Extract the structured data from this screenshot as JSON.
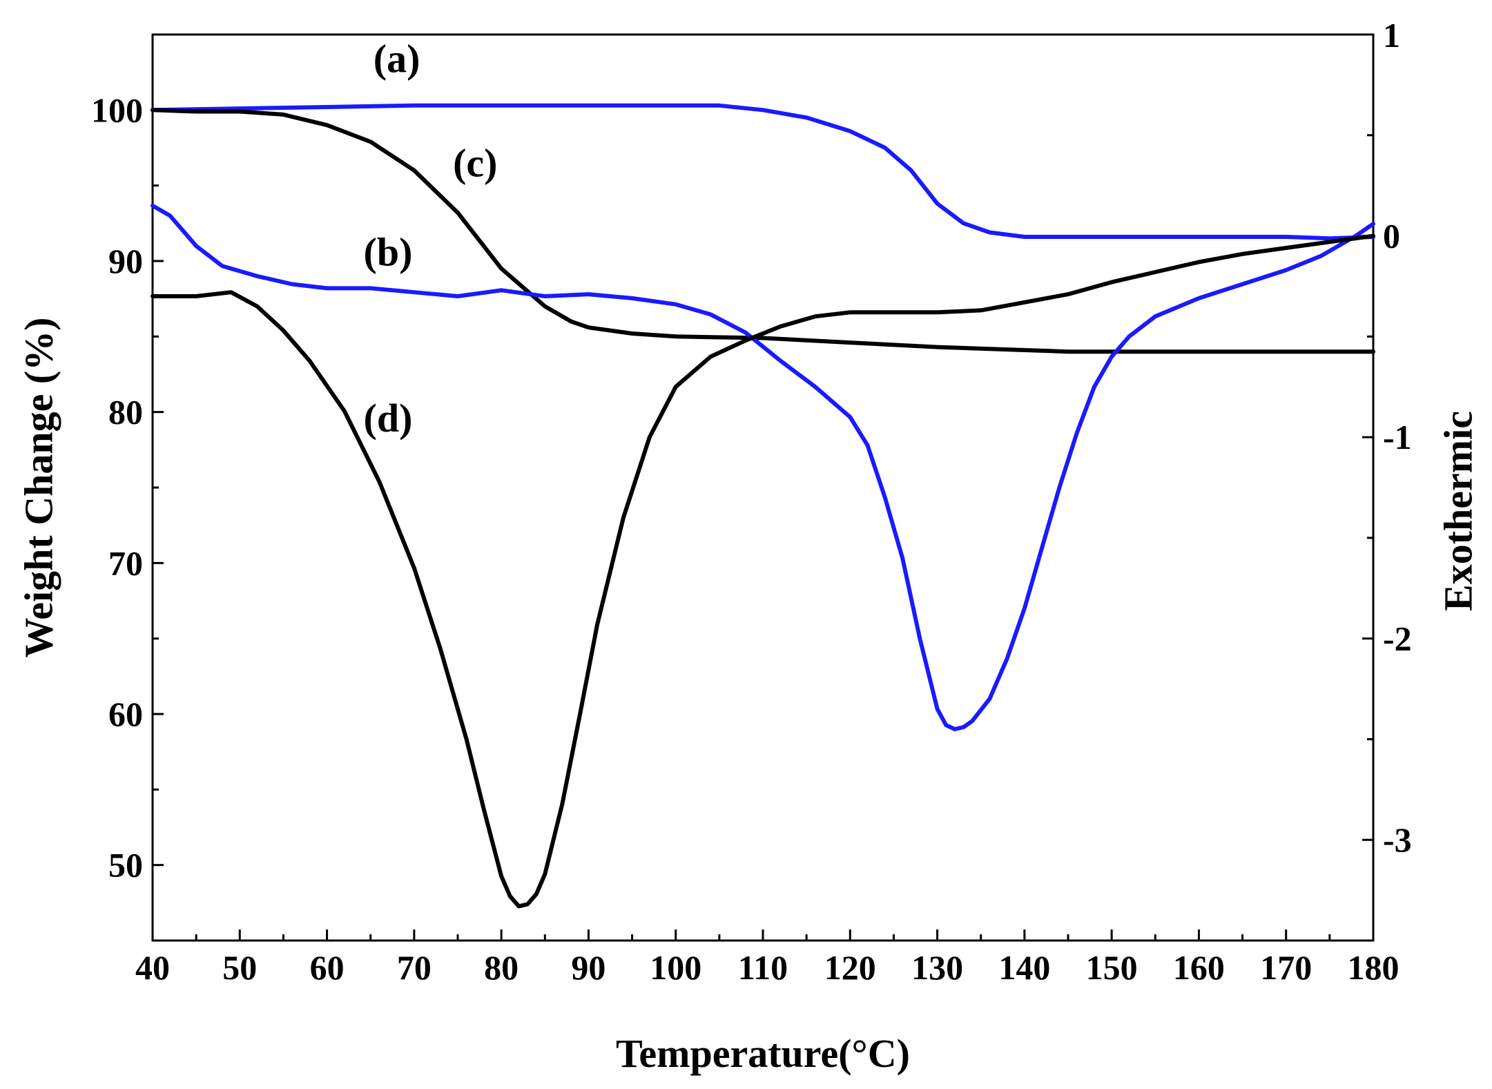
{
  "chart_data": {
    "type": "line",
    "title": "",
    "xlabel": "Temperature(°C)",
    "ylabel": "Weight Change (%)",
    "y2label": "Exothermic",
    "xlim": [
      40,
      180
    ],
    "ylim": [
      45,
      105
    ],
    "y2lim": [
      -3.5,
      1.0
    ],
    "xticks": [
      40,
      50,
      60,
      70,
      80,
      90,
      100,
      110,
      120,
      130,
      140,
      150,
      160,
      170,
      180
    ],
    "yticks": [
      50,
      60,
      70,
      80,
      90,
      100
    ],
    "y2ticks": [
      -3,
      -2,
      -1,
      0,
      1
    ],
    "grid": false,
    "series": [
      {
        "name": "(a)",
        "axis": "left",
        "color": "#1a1aff",
        "x": [
          40,
          50,
          60,
          70,
          80,
          90,
          100,
          105,
          110,
          115,
          120,
          124,
          127,
          130,
          133,
          136,
          140,
          145,
          150,
          160,
          170,
          175,
          180
        ],
        "y": [
          100.0,
          100.1,
          100.2,
          100.3,
          100.3,
          100.3,
          100.3,
          100.3,
          100.0,
          99.5,
          98.6,
          97.5,
          96.0,
          93.8,
          92.5,
          91.9,
          91.6,
          91.6,
          91.6,
          91.6,
          91.6,
          91.5,
          91.6
        ]
      },
      {
        "name": "(c)",
        "axis": "left",
        "color": "#000000",
        "x": [
          40,
          45,
          50,
          55,
          60,
          65,
          70,
          75,
          80,
          82,
          85,
          88,
          90,
          95,
          100,
          110,
          120,
          130,
          140,
          145,
          150,
          160,
          170,
          180
        ],
        "y": [
          100.0,
          99.9,
          99.9,
          99.7,
          99.0,
          97.9,
          96.0,
          93.2,
          89.5,
          88.5,
          87.0,
          86.0,
          85.6,
          85.2,
          85.0,
          84.9,
          84.6,
          84.3,
          84.1,
          84.0,
          84.0,
          84.0,
          84.0,
          84.0
        ]
      },
      {
        "name": "(b)",
        "axis": "right",
        "color": "#1a1aff",
        "x": [
          40,
          42,
          45,
          48,
          52,
          56,
          60,
          65,
          70,
          75,
          80,
          85,
          90,
          95,
          100,
          104,
          108,
          112,
          116,
          120,
          122,
          124,
          126,
          128,
          130,
          131,
          132,
          133,
          134,
          136,
          138,
          140,
          142,
          144,
          146,
          148,
          150,
          152,
          155,
          160,
          165,
          170,
          174,
          178,
          180
        ],
        "y": [
          0.15,
          0.1,
          -0.05,
          -0.15,
          -0.2,
          -0.24,
          -0.26,
          -0.26,
          -0.28,
          -0.3,
          -0.27,
          -0.3,
          -0.29,
          -0.31,
          -0.34,
          -0.39,
          -0.48,
          -0.62,
          -0.75,
          -0.9,
          -1.04,
          -1.3,
          -1.6,
          -2.0,
          -2.35,
          -2.43,
          -2.45,
          -2.44,
          -2.41,
          -2.3,
          -2.1,
          -1.85,
          -1.55,
          -1.25,
          -0.98,
          -0.75,
          -0.6,
          -0.5,
          -0.4,
          -0.31,
          -0.24,
          -0.17,
          -0.1,
          0.0,
          0.06
        ]
      },
      {
        "name": "(d)",
        "axis": "right",
        "color": "#000000",
        "x": [
          40,
          45,
          49,
          52,
          55,
          58,
          62,
          66,
          70,
          73,
          76,
          78,
          80,
          81,
          82,
          83,
          84,
          85,
          87,
          89,
          91,
          94,
          97,
          100,
          104,
          108,
          112,
          116,
          120,
          125,
          130,
          135,
          140,
          145,
          150,
          155,
          160,
          165,
          170,
          175,
          180
        ],
        "y": [
          -0.3,
          -0.3,
          -0.28,
          -0.35,
          -0.47,
          -0.62,
          -0.87,
          -1.22,
          -1.65,
          -2.05,
          -2.5,
          -2.85,
          -3.18,
          -3.28,
          -3.33,
          -3.32,
          -3.27,
          -3.17,
          -2.82,
          -2.38,
          -1.93,
          -1.4,
          -1.0,
          -0.75,
          -0.6,
          -0.52,
          -0.45,
          -0.4,
          -0.38,
          -0.38,
          -0.38,
          -0.37,
          -0.33,
          -0.29,
          -0.23,
          -0.18,
          -0.13,
          -0.09,
          -0.06,
          -0.03,
          0.0
        ]
      }
    ],
    "annotations": [
      {
        "text": "(a)",
        "x": 68,
        "y": 102.5,
        "axis": "left"
      },
      {
        "text": "(c)",
        "x": 77,
        "y": 95.6,
        "axis": "left"
      },
      {
        "text": "(b)",
        "x": 67,
        "y": 89.7,
        "axis": "left"
      },
      {
        "text": "(d)",
        "x": 67,
        "y": 78.7,
        "axis": "left"
      }
    ]
  }
}
